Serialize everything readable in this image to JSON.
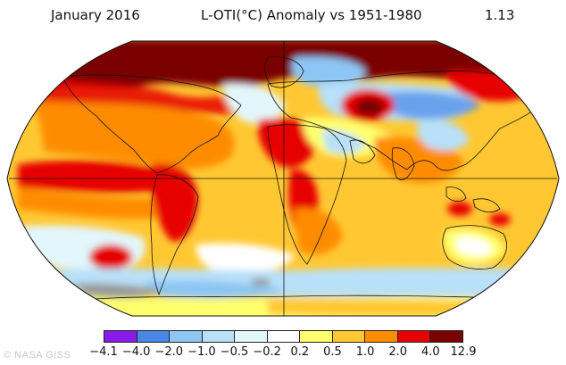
{
  "header": {
    "month": "January 2016",
    "title": "L-OTI(°C) Anomaly vs 1951-1980",
    "global_value": "1.13"
  },
  "legend": {
    "colors": [
      "#8a1be8",
      "#4a86e8",
      "#8cc6f4",
      "#b8e0f8",
      "#e3f6fb",
      "#ffffff",
      "#ffff6e",
      "#ffc832",
      "#ff8c00",
      "#e60000",
      "#7a0000"
    ],
    "ticks": [
      "−4.1",
      "−4.0",
      "−2.0",
      "−1.0",
      "−0.5",
      "−0.2",
      "0.2",
      "0.5",
      "1.0",
      "2.0",
      "4.0",
      "12.9"
    ]
  },
  "credit": "© NASA GISS",
  "map": {
    "projection": "robinson",
    "variable": "temperature anomaly",
    "units": "°C",
    "baseline": "1951-1980",
    "colors": {
      "ocean_default": "#ffc832",
      "warm": "#ff8c00",
      "hot": "#e60000",
      "extreme": "#7a0000",
      "cool": "#b8e0f8",
      "cold": "#8cc6f4",
      "very_cold": "#4a86e8",
      "neutral": "#ffffff",
      "slight_warm": "#ffff6e",
      "no_data": "#9a9a9a"
    }
  }
}
